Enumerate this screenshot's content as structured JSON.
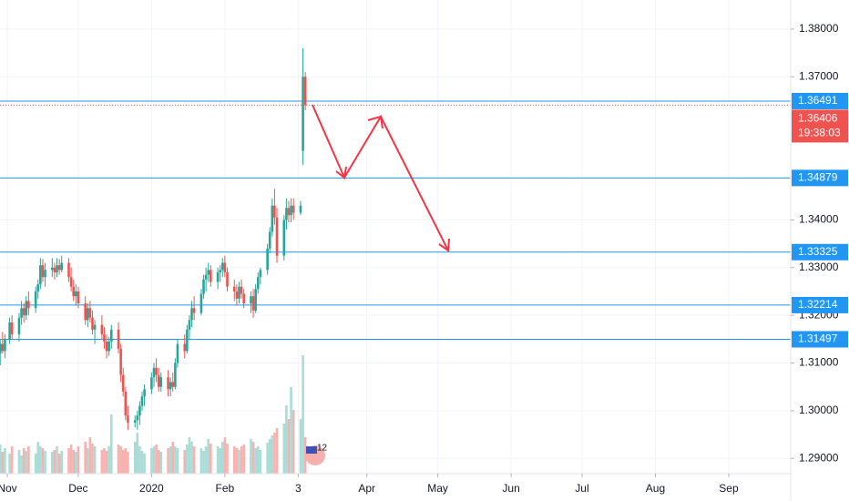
{
  "chart_data": {
    "type": "candlestick",
    "colors": {
      "up": "#26a69a",
      "down": "#ef5350",
      "up_volume": "#a9dcd6",
      "down_volume": "#f7b2b0",
      "level": "#2196f3",
      "price": "#ef5350"
    },
    "grid": true,
    "xlim": [
      -3.08,
      331.2
    ],
    "xticks": [
      {
        "value": 0,
        "label": "Nov"
      },
      {
        "value": 30,
        "label": "Dec"
      },
      {
        "value": 61,
        "label": "2020"
      },
      {
        "value": 92,
        "label": "Feb"
      },
      {
        "value": 123,
        "label": "3"
      },
      {
        "value": 152,
        "label": "Apr"
      },
      {
        "value": 182,
        "label": "May"
      },
      {
        "value": 213,
        "label": "Jun"
      },
      {
        "value": 243,
        "label": "Jul"
      },
      {
        "value": 274,
        "label": "Aug"
      },
      {
        "value": 305,
        "label": "Sep"
      }
    ],
    "ylim": [
      1.2868,
      1.3861
    ],
    "yticks": [
      {
        "value": 1.38,
        "label": "1.38000"
      },
      {
        "value": 1.37,
        "label": "1.37000"
      },
      {
        "value": 1.34,
        "label": "1.34000"
      },
      {
        "value": 1.33,
        "label": "1.33000"
      },
      {
        "value": 1.32,
        "label": "1.32000"
      },
      {
        "value": 1.31,
        "label": "1.31000"
      },
      {
        "value": 1.3,
        "label": "1.30000"
      },
      {
        "value": 1.29,
        "label": "1.29000"
      }
    ],
    "levels": [
      {
        "value": 1.36491,
        "label": "1.36491"
      },
      {
        "value": 1.34879,
        "label": "1.34879"
      },
      {
        "value": 1.33325,
        "label": "1.33325"
      },
      {
        "value": 1.32214,
        "label": "1.32214"
      },
      {
        "value": 1.31497,
        "label": "1.31497"
      }
    ],
    "price_line": {
      "value": 1.36406,
      "label": "1.36406",
      "countdown": "19:38:03"
    },
    "event_marker": "12",
    "x": [
      -3,
      -2,
      -1,
      1,
      2,
      5,
      6,
      7,
      8,
      9,
      12,
      13,
      14,
      15,
      16,
      19,
      20,
      21,
      22,
      23,
      26,
      27,
      28,
      29,
      30,
      33,
      34,
      35,
      36,
      37,
      40,
      41,
      42,
      43,
      44,
      47,
      48,
      49,
      50,
      51,
      54,
      55,
      56,
      57,
      58,
      61,
      62,
      63,
      64,
      65,
      68,
      69,
      70,
      71,
      72,
      75,
      76,
      77,
      78,
      79,
      82,
      83,
      84,
      85,
      86,
      89,
      90,
      91,
      92,
      93,
      96,
      97,
      98,
      99,
      100,
      103,
      104,
      105,
      106,
      107,
      110,
      111,
      112,
      113,
      114,
      117,
      118,
      119,
      120,
      121,
      124,
      125,
      126
    ],
    "open": [
      1.312,
      1.314,
      1.3125,
      1.315,
      1.3185,
      1.316,
      1.3195,
      1.3215,
      1.32,
      1.323,
      1.3215,
      1.325,
      1.3265,
      1.3305,
      1.328,
      1.3295,
      1.33,
      1.329,
      1.3305,
      1.3295,
      1.331,
      1.328,
      1.326,
      1.324,
      1.325,
      1.3225,
      1.319,
      1.3215,
      1.3195,
      1.317,
      1.318,
      1.316,
      1.3145,
      1.3125,
      1.3145,
      1.317,
      1.313,
      1.3075,
      1.304,
      1.299,
      1.2975,
      1.298,
      1.299,
      1.301,
      1.303,
      1.3045,
      1.307,
      1.309,
      1.3075,
      1.305,
      1.307,
      1.3045,
      1.306,
      1.305,
      1.31,
      1.314,
      1.3125,
      1.317,
      1.319,
      1.3215,
      1.3205,
      1.3245,
      1.3275,
      1.3285,
      1.3295,
      1.327,
      1.329,
      1.3295,
      1.331,
      1.329,
      1.326,
      1.325,
      1.3235,
      1.326,
      1.3245,
      1.3225,
      1.324,
      1.321,
      1.3255,
      1.328,
      1.3295,
      1.334,
      1.3375,
      1.343,
      1.3405,
      1.3325,
      1.34,
      1.3425,
      1.341,
      1.343,
      1.3415,
      1.3545,
      1.37
    ],
    "high": [
      1.315,
      1.3165,
      1.316,
      1.3195,
      1.32,
      1.3205,
      1.323,
      1.3225,
      1.324,
      1.325,
      1.326,
      1.3275,
      1.332,
      1.3318,
      1.331,
      1.332,
      1.331,
      1.332,
      1.3318,
      1.3325,
      1.332,
      1.33,
      1.3275,
      1.3265,
      1.326,
      1.324,
      1.3225,
      1.323,
      1.321,
      1.319,
      1.32,
      1.3175,
      1.316,
      1.3155,
      1.318,
      1.3185,
      1.314,
      1.309,
      1.305,
      1.301,
      1.299,
      1.3,
      1.302,
      1.304,
      1.3055,
      1.308,
      1.31,
      1.311,
      1.309,
      1.308,
      1.3085,
      1.307,
      1.308,
      1.311,
      1.315,
      1.316,
      1.318,
      1.32,
      1.323,
      1.324,
      1.3255,
      1.3285,
      1.33,
      1.331,
      1.3305,
      1.33,
      1.3305,
      1.332,
      1.3325,
      1.33,
      1.3275,
      1.3265,
      1.327,
      1.3275,
      1.3255,
      1.325,
      1.3255,
      1.3265,
      1.329,
      1.33,
      1.335,
      1.3385,
      1.3445,
      1.3465,
      1.3425,
      1.341,
      1.3445,
      1.344,
      1.3445,
      1.3445,
      1.344,
      1.376,
      1.371
    ],
    "low": [
      1.3095,
      1.312,
      1.311,
      1.314,
      1.315,
      1.3145,
      1.318,
      1.3185,
      1.319,
      1.32,
      1.3205,
      1.3235,
      1.3255,
      1.327,
      1.326,
      1.328,
      1.3275,
      1.328,
      1.3285,
      1.329,
      1.327,
      1.325,
      1.323,
      1.322,
      1.3215,
      1.318,
      1.3175,
      1.3185,
      1.316,
      1.314,
      1.315,
      1.313,
      1.311,
      1.3115,
      1.313,
      1.312,
      1.306,
      1.303,
      1.298,
      1.296,
      1.2965,
      1.296,
      1.297,
      1.3,
      1.301,
      1.3035,
      1.305,
      1.306,
      1.304,
      1.304,
      1.303,
      1.303,
      1.304,
      1.3045,
      1.309,
      1.311,
      1.312,
      1.315,
      1.3175,
      1.319,
      1.32,
      1.3235,
      1.325,
      1.327,
      1.326,
      1.3255,
      1.327,
      1.328,
      1.328,
      1.325,
      1.323,
      1.322,
      1.3225,
      1.3235,
      1.3215,
      1.3205,
      1.3195,
      1.3205,
      1.3245,
      1.3265,
      1.3285,
      1.333,
      1.3365,
      1.339,
      1.331,
      1.3315,
      1.338,
      1.3395,
      1.3395,
      1.34,
      1.341,
      1.3515,
      1.363
    ],
    "close": [
      1.314,
      1.3125,
      1.315,
      1.3185,
      1.316,
      1.3195,
      1.3215,
      1.32,
      1.323,
      1.3215,
      1.325,
      1.3265,
      1.3305,
      1.328,
      1.3295,
      1.33,
      1.329,
      1.3305,
      1.3295,
      1.331,
      1.328,
      1.326,
      1.324,
      1.325,
      1.3225,
      1.319,
      1.3215,
      1.3195,
      1.317,
      1.318,
      1.316,
      1.3145,
      1.3125,
      1.3145,
      1.317,
      1.313,
      1.3075,
      1.304,
      1.299,
      1.2975,
      1.298,
      1.299,
      1.301,
      1.303,
      1.3045,
      1.307,
      1.309,
      1.3075,
      1.305,
      1.307,
      1.3045,
      1.306,
      1.305,
      1.31,
      1.314,
      1.3125,
      1.317,
      1.319,
      1.3215,
      1.3205,
      1.3245,
      1.3275,
      1.3285,
      1.3295,
      1.327,
      1.329,
      1.3295,
      1.331,
      1.329,
      1.326,
      1.325,
      1.3235,
      1.326,
      1.3245,
      1.3225,
      1.324,
      1.321,
      1.3255,
      1.328,
      1.3295,
      1.334,
      1.3375,
      1.343,
      1.3405,
      1.3325,
      1.34,
      1.3425,
      1.341,
      1.343,
      1.3415,
      1.343,
      1.37,
      1.36406
    ],
    "volume": [
      32,
      24,
      28,
      22,
      30,
      26,
      20,
      28,
      25,
      30,
      22,
      35,
      30,
      28,
      25,
      24,
      26,
      30,
      22,
      25,
      28,
      32,
      26,
      24,
      30,
      35,
      28,
      40,
      33,
      30,
      26,
      28,
      25,
      30,
      65,
      32,
      30,
      26,
      28,
      24,
      35,
      45,
      30,
      25,
      22,
      28,
      30,
      32,
      26,
      24,
      28,
      30,
      35,
      30,
      28,
      26,
      32,
      40,
      35,
      30,
      28,
      25,
      30,
      38,
      33,
      30,
      28,
      35,
      40,
      33,
      30,
      28,
      26,
      30,
      32,
      38,
      35,
      28,
      30,
      26,
      34,
      38,
      42,
      45,
      50,
      55,
      75,
      60,
      95,
      70,
      60,
      130,
      40
    ]
  }
}
